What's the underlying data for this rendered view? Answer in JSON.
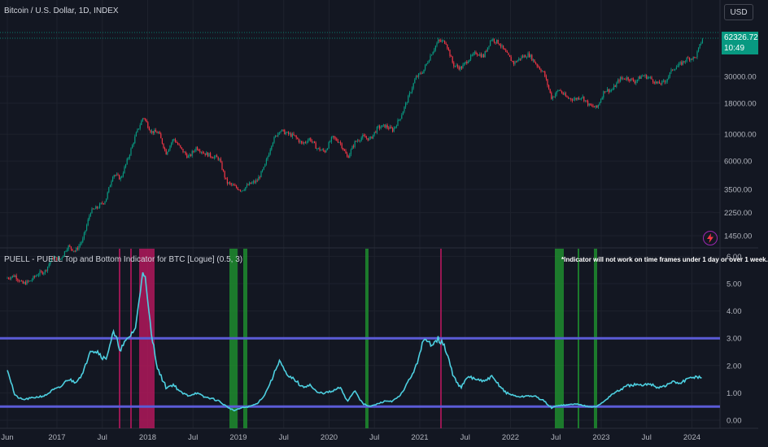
{
  "header": {
    "symbol_title": "Bitcoin / U.S. Dollar, 1D, INDEX",
    "currency_button": "USD",
    "last_price": "62326.72",
    "countdown": "10:49"
  },
  "indicator": {
    "title": "PUELL - PUELL Top and Bottom Indicator for BTC [Logue] (0.5, 3)",
    "note": "*Indicator will not work on time frames under 1 day or over 1 week."
  },
  "icons": {
    "alert": "lightning-bolt-icon"
  },
  "colors": {
    "background": "#131722",
    "up_candle": "#089981",
    "down_candle": "#f23645",
    "puell_line": "#4dd0e1",
    "threshold_line": "#5b5bd6",
    "top_zone": "#b0175b",
    "bottom_zone": "#1e8c2e"
  },
  "chart_data": [
    {
      "type": "line",
      "title": "Bitcoin / U.S. Dollar, 1D, INDEX",
      "scale": "log",
      "y_ticks": [
        "1450.00",
        "2250.00",
        "3500.00",
        "6000.00",
        "10000.00",
        "18000.00",
        "30000.00"
      ],
      "x_ticks": [
        "Jun",
        "2017",
        "Jul",
        "2018",
        "Jul",
        "2019",
        "Jul",
        "2020",
        "Jul",
        "2021",
        "Jul",
        "2022",
        "Jul",
        "2023",
        "Jul",
        "2024"
      ],
      "last_value": 62326.72,
      "series": [
        {
          "x": [
            "2016-06",
            "2016-07",
            "2016-08",
            "2016-09",
            "2016-10",
            "2016-11",
            "2016-12",
            "2017-01",
            "2017-02",
            "2017-03",
            "2017-04",
            "2017-05",
            "2017-06",
            "2017-07",
            "2017-08",
            "2017-09",
            "2017-10",
            "2017-11",
            "2017-12",
            "2018-01",
            "2018-02",
            "2018-03",
            "2018-04",
            "2018-05",
            "2018-06",
            "2018-07",
            "2018-08",
            "2018-09",
            "2018-10",
            "2018-11",
            "2018-12",
            "2019-01",
            "2019-02",
            "2019-03",
            "2019-04",
            "2019-05",
            "2019-06",
            "2019-07",
            "2019-08",
            "2019-09",
            "2019-10",
            "2019-11",
            "2019-12",
            "2020-01",
            "2020-02",
            "2020-03",
            "2020-04",
            "2020-05",
            "2020-06",
            "2020-07",
            "2020-08",
            "2020-09",
            "2020-10",
            "2020-11",
            "2020-12",
            "2021-01",
            "2021-02",
            "2021-03",
            "2021-04",
            "2021-05",
            "2021-06",
            "2021-07",
            "2021-08",
            "2021-09",
            "2021-10",
            "2021-11",
            "2021-12",
            "2022-01",
            "2022-02",
            "2022-03",
            "2022-04",
            "2022-05",
            "2022-06",
            "2022-07",
            "2022-08",
            "2022-09",
            "2022-10",
            "2022-11",
            "2022-12",
            "2023-01",
            "2023-02",
            "2023-03",
            "2023-04",
            "2023-05",
            "2023-06",
            "2023-07",
            "2023-08",
            "2023-09",
            "2023-10",
            "2023-11",
            "2023-12",
            "2024-01",
            "2024-02"
          ],
          "values": [
            650,
            680,
            580,
            610,
            700,
            740,
            960,
            920,
            1190,
            1080,
            1350,
            2300,
            2500,
            2850,
            4700,
            4300,
            6400,
            9900,
            14000,
            10500,
            10300,
            7000,
            9200,
            7500,
            6400,
            7800,
            7000,
            6600,
            6300,
            4000,
            3700,
            3450,
            3850,
            4100,
            5300,
            8500,
            10800,
            10100,
            9600,
            8300,
            9200,
            7600,
            7200,
            9400,
            8600,
            6400,
            8600,
            9500,
            9100,
            11300,
            11700,
            10800,
            13800,
            19700,
            29000,
            33100,
            45000,
            58800,
            57800,
            37300,
            35000,
            41500,
            47100,
            43800,
            61300,
            57000,
            46300,
            38500,
            43200,
            45500,
            37700,
            31800,
            19900,
            23300,
            20000,
            19400,
            20500,
            17200,
            16500,
            23100,
            23100,
            28500,
            29200,
            27200,
            30500,
            29200,
            26000,
            27000,
            34500,
            37700,
            42300,
            42600,
            62326
          ]
        }
      ]
    },
    {
      "type": "line",
      "title": "PUELL - PUELL Top and Bottom Indicator for BTC [Logue] (0.5, 3)",
      "y_ticks": [
        "0.00",
        "1.00",
        "2.00",
        "3.00",
        "4.00",
        "5.00",
        "6.00"
      ],
      "ylim": [
        0,
        6
      ],
      "thresholds": [
        0.5,
        3.0
      ],
      "series": [
        {
          "x": [
            "2016-06",
            "2016-07",
            "2016-08",
            "2016-09",
            "2016-10",
            "2016-11",
            "2016-12",
            "2017-01",
            "2017-02",
            "2017-03",
            "2017-04",
            "2017-05",
            "2017-06",
            "2017-07",
            "2017-08",
            "2017-09",
            "2017-10",
            "2017-11",
            "2017-12",
            "2018-01",
            "2018-02",
            "2018-03",
            "2018-04",
            "2018-05",
            "2018-06",
            "2018-07",
            "2018-08",
            "2018-09",
            "2018-10",
            "2018-11",
            "2018-12",
            "2019-01",
            "2019-02",
            "2019-03",
            "2019-04",
            "2019-05",
            "2019-06",
            "2019-07",
            "2019-08",
            "2019-09",
            "2019-10",
            "2019-11",
            "2019-12",
            "2020-01",
            "2020-02",
            "2020-03",
            "2020-04",
            "2020-05",
            "2020-06",
            "2020-07",
            "2020-08",
            "2020-09",
            "2020-10",
            "2020-11",
            "2020-12",
            "2021-01",
            "2021-02",
            "2021-03",
            "2021-04",
            "2021-05",
            "2021-06",
            "2021-07",
            "2021-08",
            "2021-09",
            "2021-10",
            "2021-11",
            "2021-12",
            "2022-01",
            "2022-02",
            "2022-03",
            "2022-04",
            "2022-05",
            "2022-06",
            "2022-07",
            "2022-08",
            "2022-09",
            "2022-10",
            "2022-11",
            "2022-12",
            "2023-01",
            "2023-02",
            "2023-03",
            "2023-04",
            "2023-05",
            "2023-06",
            "2023-07",
            "2023-08",
            "2023-09",
            "2023-10",
            "2023-11",
            "2023-12",
            "2024-01",
            "2024-02"
          ],
          "values": [
            1.9,
            0.9,
            0.75,
            0.8,
            0.85,
            0.9,
            1.1,
            1.2,
            1.5,
            1.4,
            1.7,
            2.6,
            2.5,
            2.2,
            3.2,
            2.6,
            3.0,
            3.4,
            5.7,
            3.2,
            1.8,
            1.2,
            1.3,
            1.0,
            0.9,
            1.0,
            0.85,
            0.8,
            0.7,
            0.5,
            0.35,
            0.45,
            0.5,
            0.6,
            0.9,
            1.5,
            2.2,
            1.6,
            1.5,
            1.2,
            1.3,
            1.0,
            1.0,
            1.05,
            1.2,
            0.7,
            1.1,
            0.6,
            0.5,
            0.6,
            0.7,
            0.7,
            0.9,
            1.4,
            1.9,
            2.9,
            2.8,
            3.0,
            2.6,
            1.6,
            1.2,
            1.6,
            1.5,
            1.4,
            1.6,
            1.3,
            1.0,
            0.9,
            0.85,
            0.9,
            0.85,
            0.7,
            0.45,
            0.55,
            0.55,
            0.6,
            0.55,
            0.5,
            0.5,
            0.7,
            0.95,
            1.1,
            1.25,
            1.3,
            1.25,
            1.35,
            1.2,
            1.25,
            1.4,
            1.35,
            1.5,
            1.6,
            1.55
          ]
        }
      ]
    }
  ]
}
